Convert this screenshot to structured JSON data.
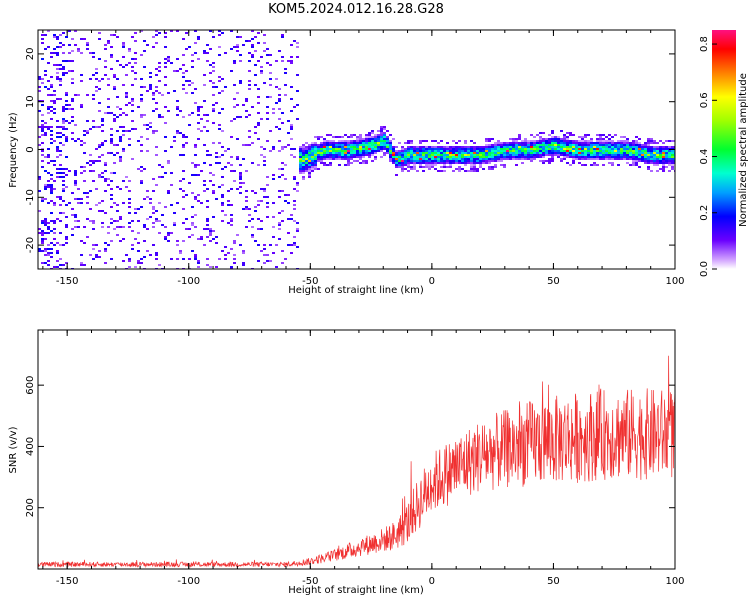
{
  "title": "KOM5.2024.012.16.28.G28",
  "chart_data": [
    {
      "type": "heatmap",
      "xlabel": "Height of straight line (km)",
      "ylabel": "Frequency (Hz)",
      "xlim": [
        -162,
        100
      ],
      "ylim": [
        -25,
        25
      ],
      "xticks": [
        "-150",
        "-100",
        "-50",
        "0",
        "50",
        "100"
      ],
      "xtick_values": [
        -150,
        -100,
        -50,
        0,
        50,
        100
      ],
      "yticks": [
        "-20",
        "-10",
        "0",
        "10",
        "20"
      ],
      "ytick_values": [
        -20,
        -10,
        0,
        10,
        20
      ],
      "colorbar": {
        "label": "Normalized spectral amplitude",
        "ticks": [
          "0.0",
          "0.2",
          "0.4",
          "0.6",
          "0.8"
        ],
        "tick_values": [
          0.0,
          0.2,
          0.4,
          0.6,
          0.8
        ],
        "range": [
          0,
          0.85
        ]
      },
      "ridge": {
        "x": [
          -53,
          -45,
          -35,
          -25,
          -20,
          -15,
          -10,
          0,
          10,
          20,
          30,
          40,
          50,
          60,
          70,
          80,
          90,
          100
        ],
        "freq": [
          -2,
          0,
          0,
          1,
          2,
          -2,
          -1,
          -1,
          -1,
          -1,
          0,
          0,
          1,
          0,
          0,
          0,
          -1,
          -1
        ]
      }
    },
    {
      "type": "line",
      "xlabel": "Height of straight line (km)",
      "ylabel": "SNR (v/v)",
      "xlim": [
        -162,
        100
      ],
      "ylim": [
        0,
        780
      ],
      "xticks": [
        "-150",
        "-100",
        "-50",
        "0",
        "50",
        "100"
      ],
      "xtick_values": [
        -150,
        -100,
        -50,
        0,
        50,
        100
      ],
      "yticks": [
        "200",
        "400",
        "600"
      ],
      "ytick_values": [
        200,
        400,
        600
      ],
      "series_color": "#f03030",
      "envelope": {
        "x": [
          -162,
          -60,
          -50,
          -40,
          -30,
          -20,
          -15,
          -10,
          -5,
          0,
          10,
          20,
          30,
          40,
          50,
          60,
          70,
          80,
          90,
          100
        ],
        "mean": [
          15,
          15,
          25,
          45,
          70,
          95,
          110,
          150,
          220,
          280,
          330,
          370,
          390,
          410,
          420,
          430,
          440,
          440,
          440,
          440
        ],
        "amp": [
          8,
          8,
          12,
          20,
          30,
          40,
          50,
          70,
          90,
          100,
          110,
          120,
          130,
          140,
          145,
          150,
          150,
          150,
          150,
          150
        ]
      }
    }
  ]
}
